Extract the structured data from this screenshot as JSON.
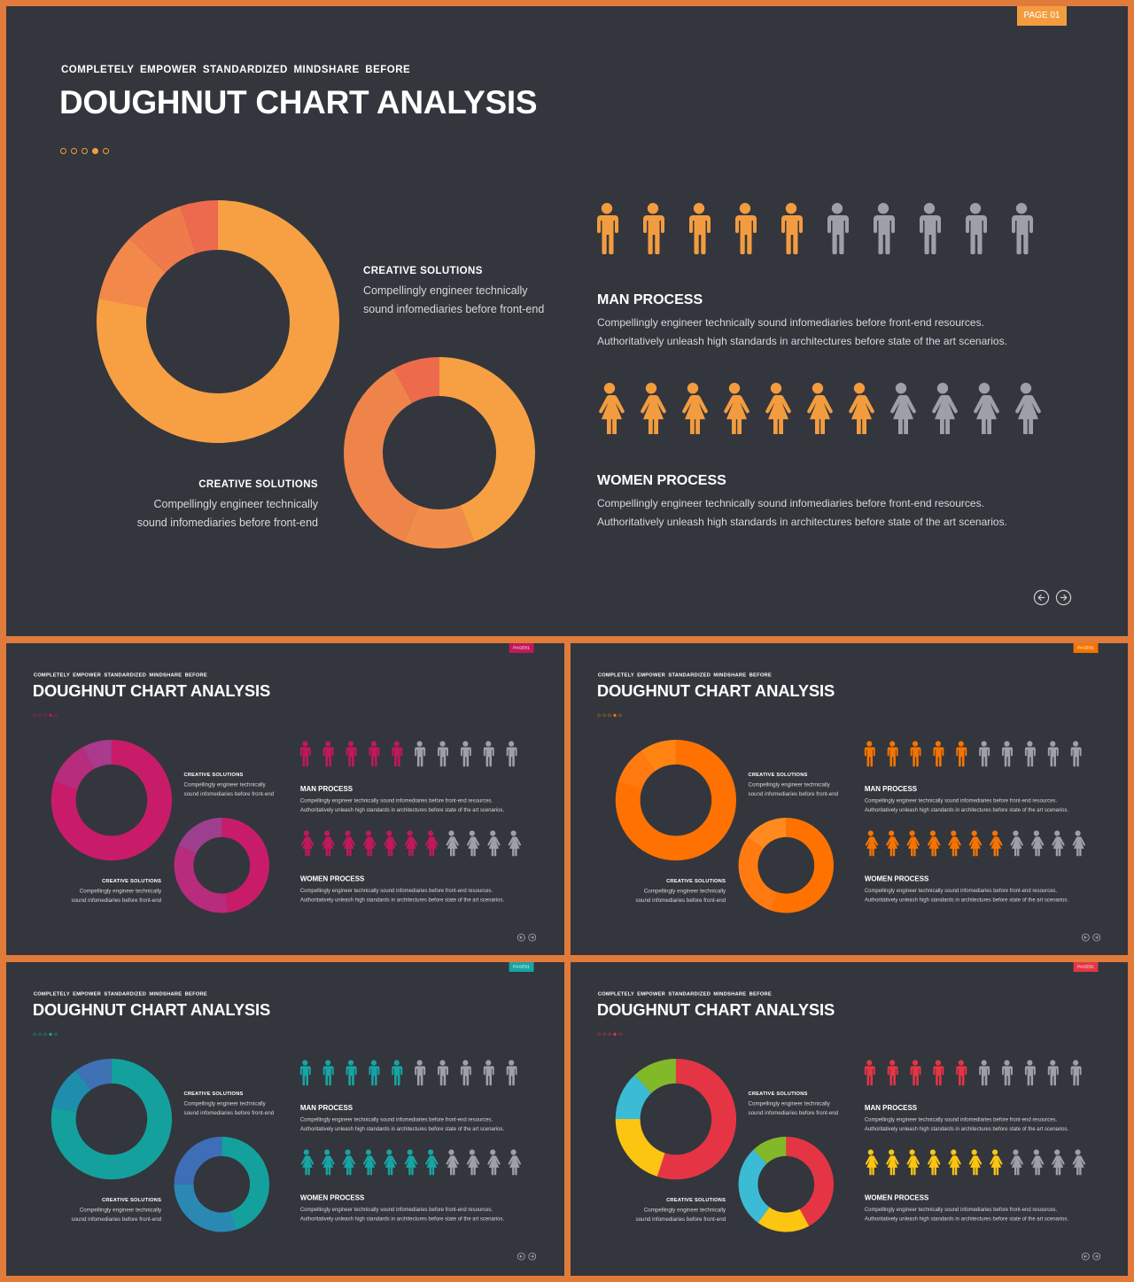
{
  "common": {
    "subtitle": "COMPLETELY EMPOWER STANDARDIZED MINDSHARE BEFORE",
    "title": "DOUGHNUT CHART ANALYSIS",
    "creative_head": "CREATIVE SOLUTIONS",
    "creative_line1": "Compellingly engineer technically",
    "creative_line2": "sound infomediaries before front-end",
    "man_head": "MAN PROCESS",
    "women_head": "WOMEN PROCESS",
    "process_line1": "Compellingly engineer technically sound infomediaries before front-end resources.",
    "process_line2": "Authoritatively unleash high standards in architectures before state of the art scenarios.",
    "man_count": 10,
    "man_highlighted": 5,
    "women_count": 11,
    "women_highlighted": 7,
    "inactive_color": "#9da0a6",
    "icons": {
      "man": "man-icon",
      "woman": "woman-icon",
      "prev": "arrow-left-circle-icon",
      "next": "arrow-right-circle-icon"
    }
  },
  "slides": [
    {
      "badge": "PAGE 01",
      "accent": "#f39c3f",
      "active_dot": 3,
      "donut_big": [
        {
          "value": 78,
          "color": "#f7a043"
        },
        {
          "value": 9,
          "color": "#f2894a"
        },
        {
          "value": 8,
          "color": "#ef7a4c"
        },
        {
          "value": 5,
          "color": "#ee6a4e"
        }
      ],
      "donut_small": [
        {
          "value": 44,
          "color": "#f7a043"
        },
        {
          "value": 12,
          "color": "#f08d4a"
        },
        {
          "value": 36,
          "color": "#ef844a"
        },
        {
          "value": 8,
          "color": "#ed6b4c"
        }
      ]
    },
    {
      "badge": "PAGE01",
      "accent": "#c2185b",
      "active_dot": 3,
      "donut_big": [
        {
          "value": 80,
          "color": "#c81c6a"
        },
        {
          "value": 12,
          "color": "#b72c7c"
        },
        {
          "value": 8,
          "color": "#a93a8d"
        }
      ],
      "donut_small": [
        {
          "value": 48,
          "color": "#c81c6a"
        },
        {
          "value": 34,
          "color": "#b72c7c"
        },
        {
          "value": 18,
          "color": "#9e3f8e"
        }
      ]
    },
    {
      "badge": "PAGE01",
      "accent": "#f57400",
      "active_dot": 3,
      "donut_big": [
        {
          "value": 80,
          "color": "#ff7100"
        },
        {
          "value": 10,
          "color": "#ff7a10"
        },
        {
          "value": 10,
          "color": "#ff8412"
        }
      ],
      "donut_small": [
        {
          "value": 55,
          "color": "#ff7200"
        },
        {
          "value": 30,
          "color": "#ff7a10"
        },
        {
          "value": 15,
          "color": "#ff8a1e"
        }
      ]
    },
    {
      "badge": "PAGE01",
      "accent": "#17a5a4",
      "active_dot": 3,
      "donut_big": [
        {
          "value": 78,
          "color": "#14a19e"
        },
        {
          "value": 12,
          "color": "#1f8eac"
        },
        {
          "value": 10,
          "color": "#3e72b4"
        }
      ],
      "donut_small": [
        {
          "value": 45,
          "color": "#14a19e"
        },
        {
          "value": 30,
          "color": "#2a89b3"
        },
        {
          "value": 25,
          "color": "#3e6eb8"
        }
      ]
    },
    {
      "badge": "PAGE01",
      "accent": "#e53545",
      "active_dot": 3,
      "donut_big": [
        {
          "value": 55,
          "color": "#e53545"
        },
        {
          "value": 20,
          "color": "#fbc512"
        },
        {
          "value": 13,
          "color": "#3bbbd4"
        },
        {
          "value": 12,
          "color": "#82b929"
        }
      ],
      "donut_small": [
        {
          "value": 42,
          "color": "#e53545"
        },
        {
          "value": 18,
          "color": "#fbc512"
        },
        {
          "value": 28,
          "color": "#3bbbd4"
        },
        {
          "value": 12,
          "color": "#82b929"
        }
      ],
      "women_color": "#fbc512"
    }
  ]
}
